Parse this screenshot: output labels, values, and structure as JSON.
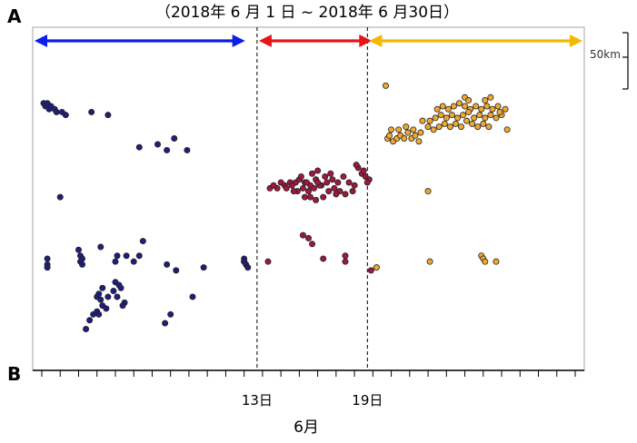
{
  "chart_data": {
    "type": "scatter",
    "title": "（2018年 6 月 1 日 ~ 2018年 6 月30日）",
    "end_label_top": "A",
    "end_label_bottom": "B",
    "scale_bar_label": "50km",
    "x_tick_labels": [
      {
        "label": "13日",
        "x": 13
      },
      {
        "label": "19日",
        "x": 19
      }
    ],
    "xlabel": "6月",
    "xlim": [
      1,
      30
    ],
    "ylim": [
      0,
      100
    ],
    "period_arrows": [
      {
        "from": 1,
        "to": 12,
        "color": "#0a1ee6"
      },
      {
        "from": 13,
        "to": 18.9,
        "color": "#e61414"
      },
      {
        "from": 19,
        "to": 30,
        "color": "#f5b800"
      }
    ],
    "dividers": [
      13,
      19
    ],
    "series": [
      {
        "fill": "#1e1e80",
        "points": [
          [
            1.1,
            88
          ],
          [
            1.2,
            87
          ],
          [
            1.3,
            88
          ],
          [
            1.4,
            86
          ],
          [
            1.5,
            87
          ],
          [
            1.7,
            86
          ],
          [
            1.8,
            85
          ],
          [
            2.1,
            85
          ],
          [
            2.3,
            84
          ],
          [
            3.7,
            85
          ],
          [
            4.6,
            84
          ],
          [
            6.3,
            73
          ],
          [
            7.3,
            74
          ],
          [
            8.2,
            76
          ],
          [
            7.8,
            72
          ],
          [
            8.9,
            72
          ],
          [
            2.0,
            56
          ],
          [
            1.3,
            35
          ],
          [
            1.3,
            33
          ],
          [
            1.3,
            32
          ],
          [
            3.0,
            38
          ],
          [
            3.1,
            36
          ],
          [
            3.2,
            35
          ],
          [
            3.1,
            34
          ],
          [
            3.2,
            33
          ],
          [
            4.2,
            39
          ],
          [
            5.0,
            34
          ],
          [
            5.6,
            36
          ],
          [
            6.3,
            36
          ],
          [
            6.0,
            34
          ],
          [
            7.8,
            33
          ],
          [
            8.3,
            31
          ],
          [
            9.8,
            32
          ],
          [
            12.0,
            35
          ],
          [
            12.0,
            34
          ],
          [
            12.1,
            33
          ],
          [
            12.2,
            32
          ],
          [
            12.0,
            34
          ],
          [
            5.1,
            36
          ],
          [
            6.5,
            41
          ],
          [
            4.0,
            22
          ],
          [
            4.2,
            21
          ],
          [
            4.3,
            19
          ],
          [
            4.5,
            18
          ],
          [
            4.6,
            22
          ],
          [
            4.9,
            24
          ],
          [
            5.1,
            22
          ],
          [
            5.2,
            26
          ],
          [
            5.0,
            27
          ],
          [
            5.3,
            25
          ],
          [
            5.5,
            20
          ],
          [
            4.3,
            25
          ],
          [
            4.1,
            23
          ],
          [
            4.0,
            17
          ],
          [
            4.1,
            16
          ],
          [
            3.6,
            14
          ],
          [
            3.8,
            16
          ],
          [
            5.4,
            19
          ],
          [
            3.4,
            11
          ],
          [
            7.7,
            13
          ],
          [
            8.0,
            16
          ],
          [
            9.2,
            22
          ]
        ]
      },
      {
        "fill": "#a0183c",
        "points": [
          [
            13.4,
            59
          ],
          [
            13.8,
            59
          ],
          [
            14.2,
            60
          ],
          [
            14.5,
            61
          ],
          [
            14.8,
            61
          ],
          [
            15.0,
            62
          ],
          [
            15.3,
            61
          ],
          [
            15.6,
            60
          ],
          [
            15.9,
            62
          ],
          [
            16.2,
            60
          ],
          [
            16.5,
            61
          ],
          [
            16.8,
            62
          ],
          [
            17.1,
            61
          ],
          [
            17.4,
            63
          ],
          [
            17.7,
            61
          ],
          [
            18.0,
            60
          ],
          [
            18.2,
            66
          ],
          [
            18.4,
            64
          ],
          [
            18.6,
            63
          ],
          [
            18.8,
            62
          ],
          [
            14.3,
            59
          ],
          [
            14.6,
            60
          ],
          [
            14.9,
            58
          ],
          [
            15.2,
            59
          ],
          [
            15.5,
            58
          ],
          [
            15.8,
            59
          ],
          [
            16.1,
            60
          ],
          [
            16.4,
            63
          ],
          [
            16.7,
            64
          ],
          [
            15.1,
            63
          ],
          [
            15.7,
            64
          ],
          [
            16.0,
            65
          ],
          [
            17.5,
            57
          ],
          [
            17.9,
            58
          ],
          [
            18.5,
            65
          ],
          [
            14.0,
            61
          ],
          [
            16.9,
            59
          ],
          [
            15.4,
            61
          ],
          [
            17.2,
            58
          ],
          [
            13.6,
            60
          ],
          [
            15.6,
            56
          ],
          [
            15.9,
            55
          ],
          [
            16.3,
            56
          ],
          [
            16.6,
            58
          ],
          [
            15.3,
            56
          ],
          [
            14.7,
            58
          ],
          [
            17.0,
            57
          ],
          [
            18.1,
            67
          ],
          [
            18.7,
            61
          ],
          [
            16.0,
            61
          ],
          [
            15.2,
            43
          ],
          [
            15.5,
            42
          ],
          [
            15.7,
            40
          ],
          [
            13.3,
            34
          ],
          [
            16.3,
            35
          ],
          [
            17.5,
            34
          ],
          [
            17.5,
            36
          ],
          [
            18.9,
            31
          ]
        ]
      },
      {
        "fill": "#f0a830",
        "points": [
          [
            19.7,
            94
          ],
          [
            19.8,
            76
          ],
          [
            19.9,
            77
          ],
          [
            20.1,
            75
          ],
          [
            20.3,
            76
          ],
          [
            20.5,
            77
          ],
          [
            20.7,
            76
          ],
          [
            20.9,
            78
          ],
          [
            21.1,
            76
          ],
          [
            21.3,
            77
          ],
          [
            21.5,
            75
          ],
          [
            20.0,
            79
          ],
          [
            20.4,
            79
          ],
          [
            20.8,
            80
          ],
          [
            21.2,
            79
          ],
          [
            21.6,
            78
          ],
          [
            22.0,
            80
          ],
          [
            22.3,
            79
          ],
          [
            22.6,
            80
          ],
          [
            22.9,
            81
          ],
          [
            23.2,
            80
          ],
          [
            23.5,
            81
          ],
          [
            23.8,
            80
          ],
          [
            24.1,
            82
          ],
          [
            24.4,
            81
          ],
          [
            24.7,
            80
          ],
          [
            25.0,
            81
          ],
          [
            25.3,
            80
          ],
          [
            22.5,
            86
          ],
          [
            22.8,
            87
          ],
          [
            23.1,
            86
          ],
          [
            23.4,
            87
          ],
          [
            23.7,
            88
          ],
          [
            24.0,
            87
          ],
          [
            24.3,
            86
          ],
          [
            24.6,
            87
          ],
          [
            24.9,
            86
          ],
          [
            25.2,
            87
          ],
          [
            25.5,
            86
          ],
          [
            25.8,
            87
          ],
          [
            22.7,
            84
          ],
          [
            23.0,
            83
          ],
          [
            23.3,
            84
          ],
          [
            23.6,
            83
          ],
          [
            23.9,
            84
          ],
          [
            24.2,
            85
          ],
          [
            24.5,
            83
          ],
          [
            24.8,
            84
          ],
          [
            25.1,
            83
          ],
          [
            25.4,
            84
          ],
          [
            25.7,
            83
          ],
          [
            26.0,
            84
          ],
          [
            21.7,
            82
          ],
          [
            22.1,
            82
          ],
          [
            22.4,
            83
          ],
          [
            24.0,
            90
          ],
          [
            24.2,
            89
          ],
          [
            25.1,
            89
          ],
          [
            25.4,
            90
          ],
          [
            25.9,
            85
          ],
          [
            26.2,
            86
          ],
          [
            26.3,
            79
          ],
          [
            22.0,
            58
          ],
          [
            19.2,
            32
          ],
          [
            22.1,
            34
          ],
          [
            24.9,
            36
          ],
          [
            25.0,
            35
          ],
          [
            25.1,
            34
          ],
          [
            25.7,
            34
          ]
        ]
      }
    ]
  }
}
